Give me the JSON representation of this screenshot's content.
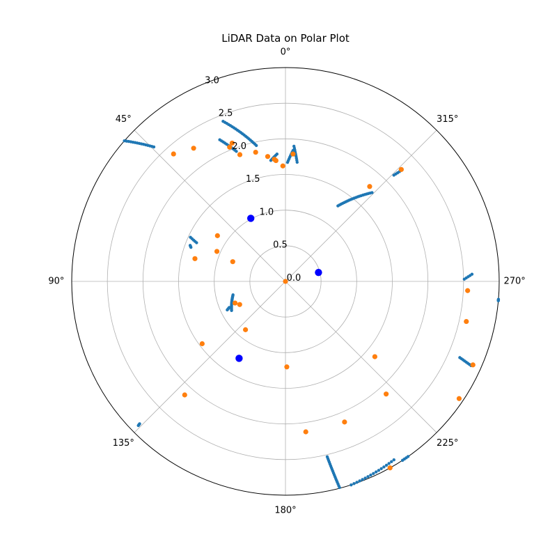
{
  "chart_data": {
    "type": "scatter",
    "projection": "polar",
    "title": "LiDAR Data on Polar Plot",
    "theta_zero_location": "N",
    "theta_direction": "counterclockwise",
    "rlim": [
      0,
      3.0
    ],
    "grid": true,
    "r_tick_labels": [
      "0.0",
      "0.5",
      "1.0",
      "1.5",
      "2.0",
      "2.5",
      "3.0"
    ],
    "r_tick_values": [
      0.0,
      0.5,
      1.0,
      1.5,
      2.0,
      2.5,
      3.0
    ],
    "theta_tick_labels": [
      "0°",
      "45°",
      "90°",
      "135°",
      "180°",
      "225°",
      "270°",
      "315°"
    ],
    "theta_tick_values": [
      0,
      45,
      90,
      135,
      180,
      225,
      270,
      315
    ],
    "colors": {
      "raw": "#1f77b4",
      "filtered": "#ff7f0e",
      "highlight": "#0000ff",
      "grid": "#b0b0b0",
      "frame": "#000000"
    },
    "series": [
      {
        "style": "raw",
        "segments": [
          {
            "theta": [
              44.4,
              48.9
            ],
            "r": [
              2.64,
              3.0
            ]
          },
          {
            "theta": [
              12.1,
              21.3
            ],
            "r": [
              1.95,
              2.41
            ]
          },
          {
            "theta": [
              20.7,
              24.9
            ],
            "r": [
              1.95,
              2.19
            ]
          },
          {
            "theta": [
              6.9,
              3.8
            ],
            "r": [
              1.71,
              1.79
            ]
          },
          {
            "theta": [
              -1.0,
              -3.3
            ],
            "r": [
              1.67,
              1.84
            ]
          },
          {
            "theta": [
              -5.6,
              -3.6
            ],
            "r": [
              1.68,
              1.9
            ]
          },
          {
            "theta": [
              -45.6,
              -46.1
            ],
            "r": [
              2.13,
              2.22
            ]
          },
          {
            "theta": [
              -44.3,
              -34.8
            ],
            "r": [
              1.74,
              1.29
            ]
          },
          {
            "theta": [
              -89.3,
              -87.8
            ],
            "r": [
              2.51,
              2.62
            ]
          },
          {
            "theta": [
              -94.8,
              -95.2
            ],
            "r": [
              3.0,
              3.0
            ]
          },
          {
            "theta": [
              -113.6,
              -114.4
            ],
            "r": [
              2.67,
              2.86
            ]
          },
          {
            "theta": [
              -162.1,
              -148.7
            ],
            "r": [
              3.0,
              2.93
            ]
          },
          {
            "theta": [
              -146.8,
              -145.0
            ],
            "r": [
              3.0,
              3.0
            ]
          },
          {
            "theta": [
              -166.6,
              -165.3
            ],
            "r": [
              2.53,
              2.99
            ]
          },
          {
            "theta": [
              134.3,
              134.4
            ],
            "r": [
              2.86,
              2.89
            ]
          },
          {
            "theta": [
              114.9,
              116.1
            ],
            "r": [
              0.87,
              0.91
            ]
          },
          {
            "theta": [
              104.4,
              118.4
            ],
            "r": [
              0.76,
              0.86
            ]
          },
          {
            "theta": [
              70.2,
              69.3
            ],
            "r": [
              1.41,
              1.43
            ]
          },
          {
            "theta": [
              66.5,
              65.1
            ],
            "r": [
              1.36,
              1.47
            ]
          }
        ]
      },
      {
        "style": "filtered",
        "theta": [
          41.3,
          34.6,
          22.6,
          21.1,
          19.8,
          13.0,
          8.1,
          5.2,
          4.5,
          1.3,
          -3.4,
          -46.0,
          -41.6,
          -92.9,
          -114.0,
          -102.5,
          -130.1,
          -124.0,
          -138.2,
          -157.2,
          -172.3,
          -150.7,
          -179.1,
          126.8,
          138.4,
          140.4,
          116.8,
          113.2,
          66.4,
          56.1,
          69.5,
          75.9
        ],
        "r": [
          2.38,
          2.27,
          2.04,
          2.08,
          1.89,
          1.86,
          1.77,
          1.72,
          1.7,
          1.62,
          1.79,
          2.26,
          1.78,
          2.56,
          2.88,
          2.6,
          1.64,
          2.94,
          2.12,
          2.14,
          2.13,
          3.0,
          1.2,
          1.46,
          2.13,
          0.88,
          0.72,
          0.77,
          1.05,
          1.15,
          0.79,
          1.31
        ]
      },
      {
        "style": "highlight",
        "theta": [
          -74.9,
          28.8,
          148.9
        ],
        "r": [
          0.48,
          1.01,
          1.26
        ]
      },
      {
        "style": "filtered_center",
        "theta": [
          0.0
        ],
        "r": [
          0.0
        ]
      }
    ]
  }
}
